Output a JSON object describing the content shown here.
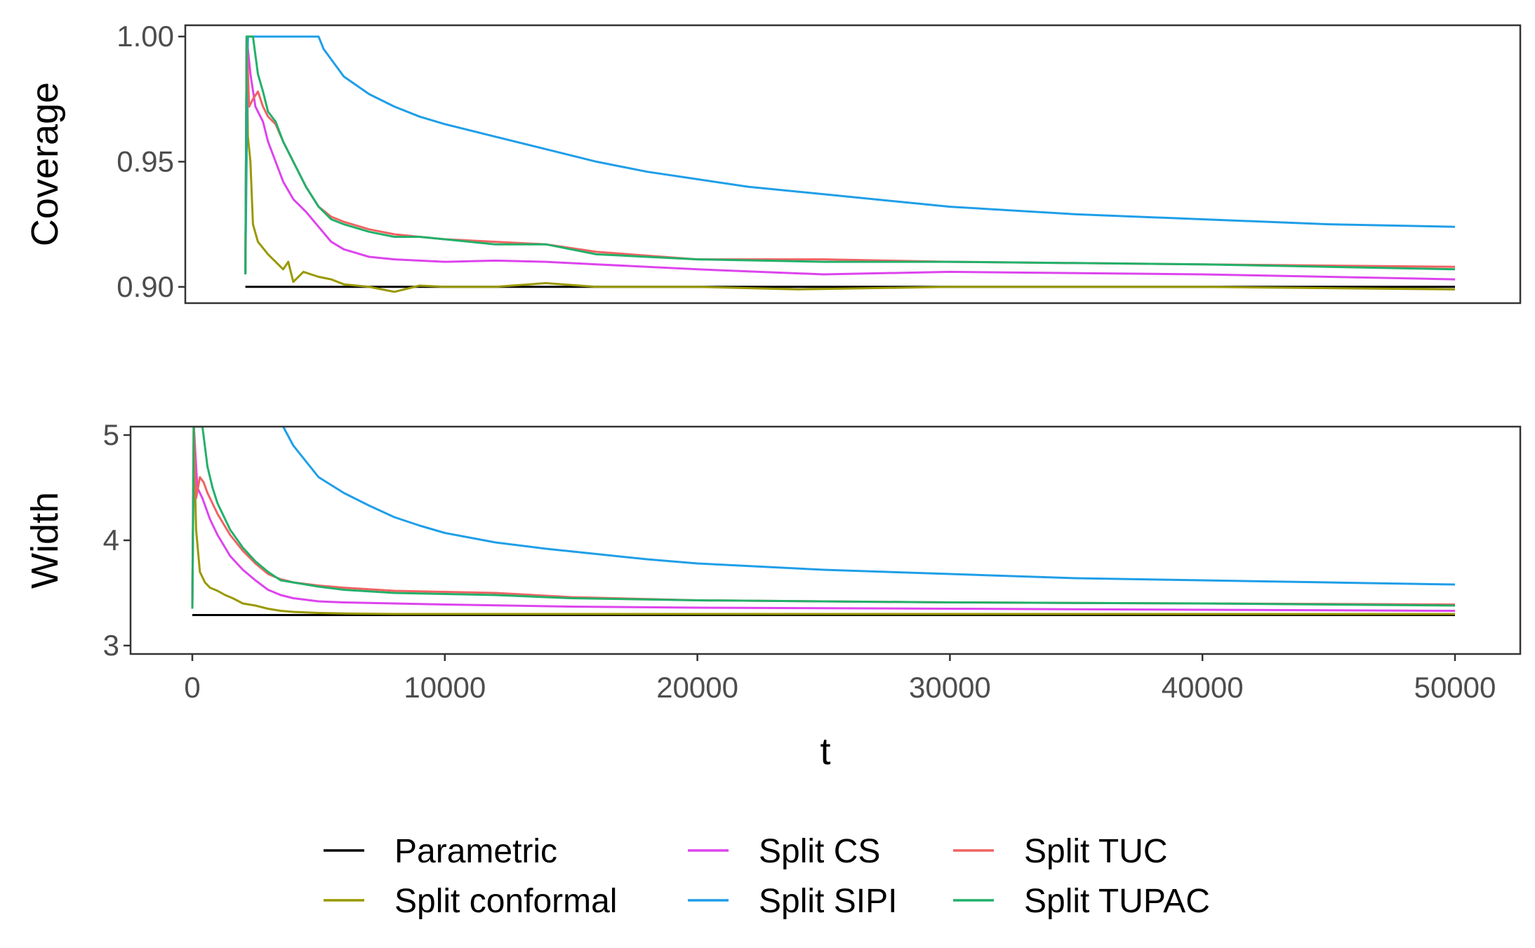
{
  "chart_data": {
    "type": "line",
    "xlabel": "t",
    "xlim": [
      -2500,
      52500
    ],
    "x_ticks": [
      "0",
      "10000",
      "20000",
      "30000",
      "40000",
      "50000"
    ],
    "x_tick_values": [
      0,
      10000,
      20000,
      30000,
      40000,
      50000
    ],
    "legend": [
      "Parametric",
      "Split conformal",
      "Split CS",
      "Split SIPI",
      "Split TUC",
      "Split TUPAC"
    ],
    "colors": {
      "Parametric": "#000000",
      "Split conformal": "#999900",
      "Split CS": "#dd44ee",
      "Split SIPI": "#1f9ee8",
      "Split TUC": "#f06262",
      "Split TUPAC": "#22b06a"
    },
    "panels": [
      {
        "id": "coverage",
        "ylabel": "Coverage",
        "ylim": [
          0.8935,
          1.0045
        ],
        "y_ticks": [
          "0.90",
          "0.95",
          "1.00"
        ],
        "y_tick_values": [
          0.9,
          0.95,
          1.0
        ],
        "series": [
          {
            "name": "Parametric",
            "x": [
              2100,
              50000
            ],
            "y": [
              0.9,
              0.9
            ]
          },
          {
            "name": "Split conformal",
            "x": [
              2100,
              2150,
              2200,
              2300,
              2400,
              2600,
              3000,
              3400,
              3600,
              3800,
              4000,
              4400,
              5000,
              5500,
              6000,
              7000,
              8000,
              9000,
              10000,
              12000,
              14000,
              16000,
              20000,
              24000,
              30000,
              40000,
              50000
            ],
            "y": [
              0.905,
              1.0,
              0.96,
              0.95,
              0.925,
              0.918,
              0.913,
              0.909,
              0.907,
              0.91,
              0.902,
              0.906,
              0.904,
              0.903,
              0.901,
              0.9,
              0.898,
              0.9005,
              0.9,
              0.9,
              0.9015,
              0.9,
              0.9,
              0.899,
              0.9,
              0.9,
              0.899
            ]
          },
          {
            "name": "Split CS",
            "x": [
              2100,
              2150,
              2300,
              2500,
              2800,
              3000,
              3300,
              3600,
              4000,
              4500,
              5000,
              5500,
              6000,
              7000,
              8000,
              10000,
              12000,
              14000,
              16000,
              20000,
              25000,
              30000,
              40000,
              50000
            ],
            "y": [
              0.905,
              1.0,
              0.985,
              0.972,
              0.966,
              0.958,
              0.95,
              0.942,
              0.935,
              0.93,
              0.924,
              0.918,
              0.915,
              0.912,
              0.911,
              0.91,
              0.9105,
              0.91,
              0.909,
              0.907,
              0.905,
              0.906,
              0.905,
              0.903
            ]
          },
          {
            "name": "Split SIPI",
            "x": [
              2100,
              2200,
              5000,
              5200,
              6000,
              7000,
              8000,
              9000,
              10000,
              12000,
              14000,
              16000,
              18000,
              20000,
              22000,
              25000,
              28000,
              30000,
              35000,
              40000,
              45000,
              50000
            ],
            "y": [
              0.905,
              1.0,
              1.0,
              0.995,
              0.984,
              0.977,
              0.972,
              0.968,
              0.965,
              0.96,
              0.955,
              0.95,
              0.946,
              0.943,
              0.94,
              0.937,
              0.934,
              0.932,
              0.929,
              0.927,
              0.925,
              0.924
            ]
          },
          {
            "name": "Split TUC",
            "x": [
              2100,
              2150,
              2250,
              2400,
              2600,
              2800,
              3000,
              3300,
              3600,
              4000,
              4500,
              5000,
              5500,
              6000,
              7000,
              8000,
              9000,
              10000,
              12000,
              14000,
              16000,
              20000,
              25000,
              30000,
              40000,
              50000
            ],
            "y": [
              0.905,
              1.0,
              0.972,
              0.975,
              0.978,
              0.972,
              0.968,
              0.965,
              0.958,
              0.95,
              0.94,
              0.932,
              0.928,
              0.926,
              0.923,
              0.921,
              0.92,
              0.919,
              0.918,
              0.917,
              0.914,
              0.911,
              0.911,
              0.91,
              0.909,
              0.908
            ]
          },
          {
            "name": "Split TUPAC",
            "x": [
              2100,
              2150,
              2400,
              2600,
              2800,
              3000,
              3300,
              3600,
              4000,
              4500,
              5000,
              5500,
              6000,
              7000,
              8000,
              9000,
              10000,
              12000,
              14000,
              16000,
              20000,
              25000,
              30000,
              40000,
              50000
            ],
            "y": [
              0.905,
              1.0,
              1.0,
              0.985,
              0.978,
              0.97,
              0.966,
              0.958,
              0.95,
              0.94,
              0.932,
              0.927,
              0.925,
              0.922,
              0.92,
              0.92,
              0.919,
              0.917,
              0.917,
              0.913,
              0.911,
              0.91,
              0.91,
              0.909,
              0.907
            ]
          }
        ]
      },
      {
        "id": "width",
        "ylabel": "Width",
        "ylim": [
          2.92,
          5.08
        ],
        "y_ticks": [
          "3",
          "4",
          "5"
        ],
        "y_tick_values": [
          3,
          4,
          5
        ],
        "series": [
          {
            "name": "Parametric",
            "x": [
              0,
              50000
            ],
            "y": [
              3.29,
              3.29
            ]
          },
          {
            "name": "Split conformal",
            "x": [
              0,
              50,
              150,
              300,
              500,
              700,
              1000,
              1300,
              1600,
              2000,
              2500,
              3000,
              3500,
              4000,
              5000,
              6000,
              8000,
              10000,
              15000,
              20000,
              30000,
              40000,
              50000
            ],
            "y": [
              3.35,
              5.08,
              4.1,
              3.7,
              3.6,
              3.55,
              3.52,
              3.48,
              3.45,
              3.4,
              3.38,
              3.35,
              3.33,
              3.32,
              3.31,
              3.305,
              3.3,
              3.3,
              3.3,
              3.3,
              3.3,
              3.3,
              3.3
            ]
          },
          {
            "name": "Split CS",
            "x": [
              0,
              60,
              200,
              400,
              700,
              1000,
              1500,
              2000,
              2500,
              3000,
              3500,
              4000,
              5000,
              6000,
              8000,
              10000,
              15000,
              20000,
              30000,
              40000,
              50000
            ],
            "y": [
              3.35,
              5.08,
              4.5,
              4.4,
              4.2,
              4.05,
              3.85,
              3.72,
              3.62,
              3.53,
              3.48,
              3.45,
              3.42,
              3.41,
              3.4,
              3.39,
              3.37,
              3.36,
              3.35,
              3.34,
              3.33
            ]
          },
          {
            "name": "Split SIPI",
            "x": [
              3600,
              4000,
              4500,
              5000,
              6000,
              7000,
              8000,
              9000,
              10000,
              12000,
              14000,
              16000,
              18000,
              20000,
              25000,
              30000,
              35000,
              40000,
              45000,
              50000
            ],
            "y": [
              5.08,
              4.9,
              4.75,
              4.6,
              4.45,
              4.33,
              4.22,
              4.14,
              4.07,
              3.98,
              3.92,
              3.87,
              3.82,
              3.78,
              3.72,
              3.68,
              3.64,
              3.62,
              3.6,
              3.58
            ]
          },
          {
            "name": "Split TUC",
            "x": [
              0,
              60,
              150,
              300,
              450,
              600,
              800,
              1000,
              1500,
              2000,
              2500,
              3000,
              3500,
              4000,
              5000,
              6000,
              8000,
              10000,
              12000,
              15000,
              20000,
              30000,
              40000,
              50000
            ],
            "y": [
              3.35,
              5.08,
              4.4,
              4.6,
              4.55,
              4.45,
              4.35,
              4.25,
              4.05,
              3.9,
              3.78,
              3.68,
              3.63,
              3.6,
              3.57,
              3.55,
              3.52,
              3.51,
              3.5,
              3.46,
              3.43,
              3.41,
              3.4,
              3.39
            ]
          },
          {
            "name": "Split TUPAC",
            "x": [
              0,
              60,
              400,
              600,
              800,
              1000,
              1500,
              2000,
              2500,
              3000,
              3500,
              4000,
              5000,
              6000,
              8000,
              10000,
              12000,
              15000,
              20000,
              30000,
              40000,
              50000
            ],
            "y": [
              3.35,
              5.08,
              5.08,
              4.7,
              4.5,
              4.35,
              4.1,
              3.93,
              3.8,
              3.7,
              3.62,
              3.6,
              3.56,
              3.53,
              3.5,
              3.49,
              3.48,
              3.45,
              3.43,
              3.41,
              3.4,
              3.38
            ]
          }
        ]
      }
    ]
  }
}
